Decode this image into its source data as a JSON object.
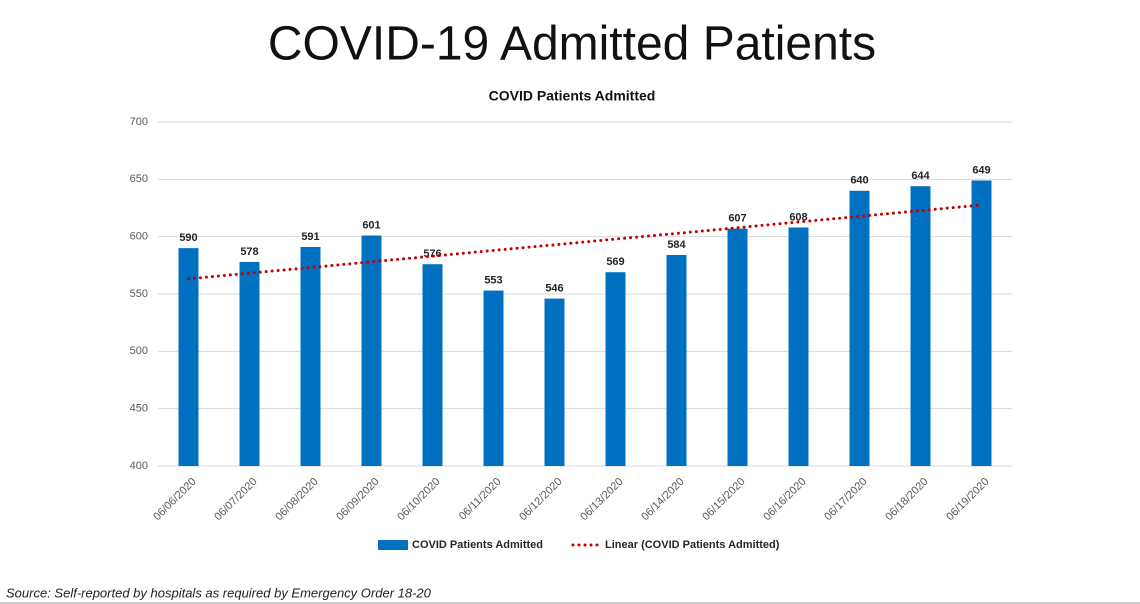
{
  "page_title": "COVID-19 Admitted Patients",
  "source": "Source: Self-reported by hospitals as required by Emergency Order 18-20",
  "chart_data": {
    "type": "bar",
    "title": "COVID Patients Admitted",
    "categories": [
      "06/06/2020",
      "06/07/2020",
      "06/08/2020",
      "06/09/2020",
      "06/10/2020",
      "06/11/2020",
      "06/12/2020",
      "06/13/2020",
      "06/14/2020",
      "06/15/2020",
      "06/16/2020",
      "06/17/2020",
      "06/18/2020",
      "06/19/2020"
    ],
    "series": [
      {
        "name": "COVID Patients Admitted",
        "type": "bar",
        "color": "#0070c0",
        "data_labels": true,
        "values": [
          590,
          578,
          591,
          601,
          576,
          553,
          546,
          569,
          584,
          607,
          608,
          640,
          644,
          649
        ]
      },
      {
        "name": "Linear (COVID Patients Admitted)",
        "type": "line",
        "style": "dotted",
        "color": "#c00000",
        "data_labels": false,
        "values": [
          563.2,
          568.2,
          573.1,
          578.1,
          583.0,
          588.0,
          592.9,
          597.9,
          602.8,
          607.8,
          612.8,
          617.7,
          622.7,
          627.6
        ]
      }
    ],
    "ylim": [
      400,
      700
    ],
    "yticks": [
      400,
      450,
      500,
      550,
      600,
      650,
      700
    ],
    "grid": true,
    "legend": "bottom"
  }
}
